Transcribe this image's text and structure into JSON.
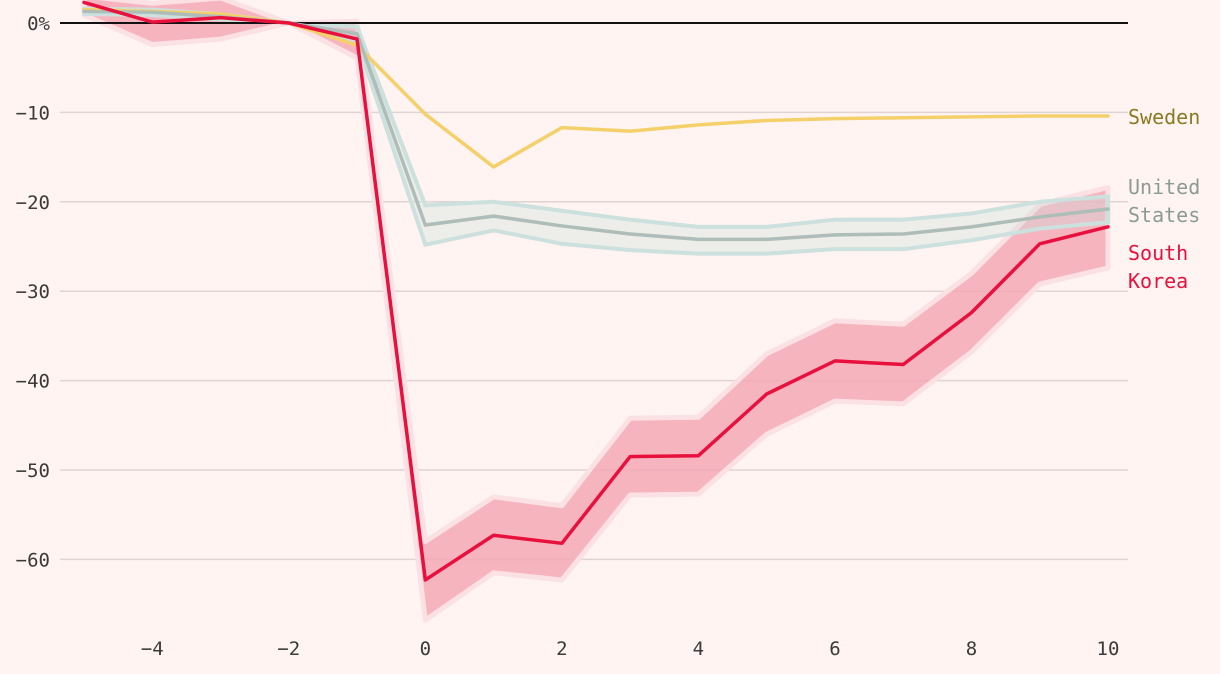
{
  "chart_data": {
    "type": "line",
    "title": "",
    "xlabel": "",
    "ylabel": "",
    "xlim": [
      -5,
      10
    ],
    "ylim": [
      -67,
      0
    ],
    "grid": true,
    "x_ticks": [
      -4,
      -2,
      0,
      2,
      4,
      6,
      8,
      10
    ],
    "x_tick_labels": [
      "−4",
      "−2",
      "0",
      "2",
      "4",
      "6",
      "8",
      "10"
    ],
    "y_ticks": [
      0,
      -10,
      -20,
      -30,
      -40,
      -50,
      -60
    ],
    "y_tick_labels": [
      "0%",
      "−10",
      "−20",
      "−30",
      "−40",
      "−50",
      "−60"
    ],
    "x": [
      -5,
      -4,
      -3,
      -2,
      -1,
      0,
      1,
      2,
      3,
      4,
      5,
      6,
      7,
      8,
      9,
      10
    ],
    "series": [
      {
        "name": "Sweden",
        "label_lines": [
          "Sweden"
        ],
        "color": "#f5d06a",
        "label_color": "#8a7a22",
        "values": [
          1.5,
          1.3,
          1.0,
          0,
          -2.5,
          -10.2,
          -16.1,
          -11.7,
          -12.1,
          -11.4,
          -10.9,
          -10.7,
          -10.6,
          -10.5,
          -10.4,
          -10.4
        ]
      },
      {
        "name": "United States",
        "label_lines": [
          "United",
          "States"
        ],
        "color": "#aebdb8",
        "label_color": "#8c9a96",
        "band_color": "#cce0dd",
        "values": [
          1.3,
          1.2,
          0.7,
          0,
          -1.2,
          -22.6,
          -21.6,
          -22.7,
          -23.6,
          -24.2,
          -24.2,
          -23.7,
          -23.6,
          -22.8,
          -21.7,
          -20.8
        ],
        "lower": [
          1.0,
          0.9,
          0.4,
          0,
          -2.0,
          -24.8,
          -23.2,
          -24.7,
          -25.4,
          -25.8,
          -25.8,
          -25.3,
          -25.3,
          -24.3,
          -23.0,
          -22.3
        ],
        "upper": [
          1.6,
          1.5,
          1.0,
          0,
          -0.4,
          -20.4,
          -20.0,
          -21.0,
          -22.0,
          -22.8,
          -22.8,
          -22.0,
          -22.0,
          -21.3,
          -20.0,
          -19.4
        ]
      },
      {
        "name": "South Korea",
        "label_lines": [
          "South",
          "Korea"
        ],
        "color": "#e8103c",
        "label_color": "#e8103c",
        "band_color": "#f5a8b6",
        "values": [
          2.3,
          0.1,
          0.6,
          0,
          -1.8,
          -62.3,
          -57.3,
          -58.2,
          -48.5,
          -48.4,
          -41.5,
          -37.8,
          -38.2,
          -32.4,
          -24.7,
          -22.8
        ],
        "lower": [
          0.9,
          -2.4,
          -1.8,
          0,
          -3.9,
          -66.8,
          -61.5,
          -62.3,
          -52.8,
          -52.7,
          -46.0,
          -42.3,
          -42.6,
          -36.8,
          -29.2,
          -27.4
        ],
        "upper": [
          3.0,
          2.2,
          2.8,
          0,
          0.2,
          -58.0,
          -53.0,
          -54.0,
          -44.2,
          -44.1,
          -37.0,
          -33.3,
          -33.7,
          -28.0,
          -20.3,
          -18.4
        ]
      }
    ]
  }
}
